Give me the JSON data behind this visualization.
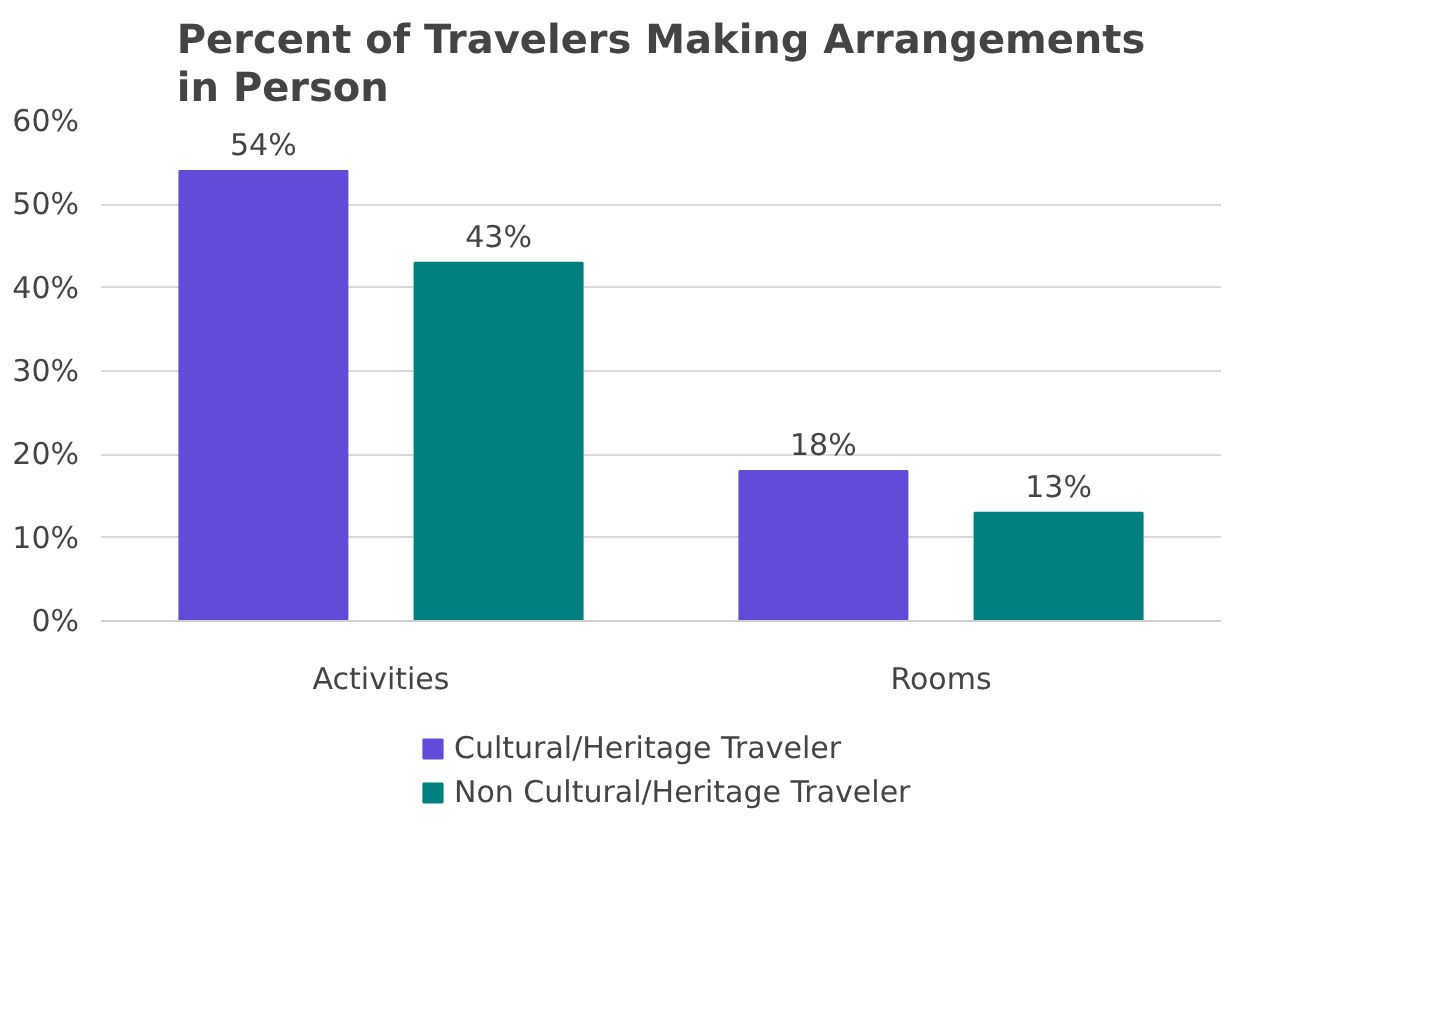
{
  "chart_data": {
    "type": "bar",
    "title": "Percent of Travelers Making Arrangements\nin Person",
    "categories": [
      "Activities",
      "Rooms"
    ],
    "series": [
      {
        "name": "Cultural/Heritage Traveler",
        "color": "#604cd8",
        "values": [
          54,
          18
        ],
        "value_labels": [
          "54%",
          "18%"
        ]
      },
      {
        "name": "Non Cultural/Heritage Traveler",
        "color": "#008080",
        "values": [
          43,
          13
        ],
        "value_labels": [
          "43%",
          "13%"
        ]
      }
    ],
    "ylim": [
      0,
      60
    ],
    "yticks": [
      {
        "value": 0,
        "label": "0%"
      },
      {
        "value": 10,
        "label": "10%"
      },
      {
        "value": 20,
        "label": "20%"
      },
      {
        "value": 30,
        "label": "30%"
      },
      {
        "value": 40,
        "label": "40%"
      },
      {
        "value": 50,
        "label": "50%"
      },
      {
        "value": 60,
        "label": "60%"
      }
    ],
    "grid": "y",
    "legend": "bottom"
  }
}
